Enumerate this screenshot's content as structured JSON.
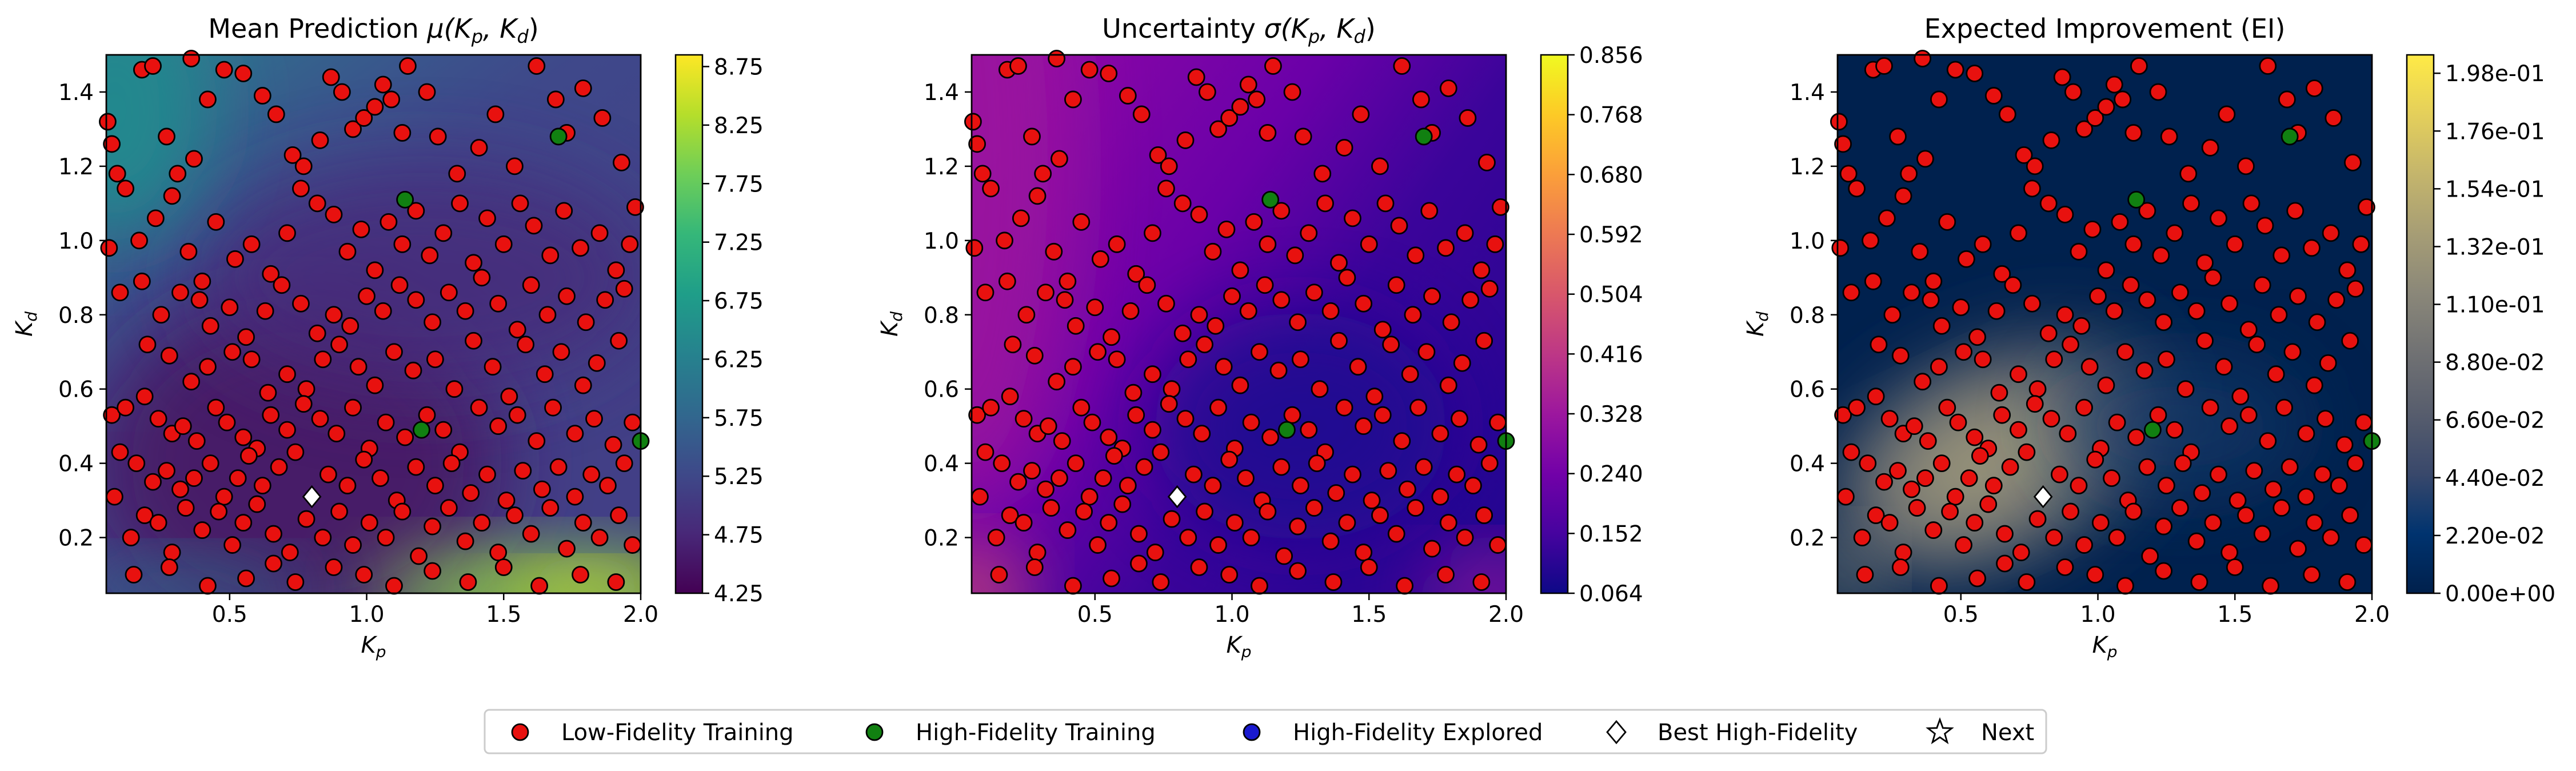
{
  "chart_data": [
    {
      "type": "heatmap",
      "title_main": "Mean Prediction",
      "title_math": "μ(K",
      "title_tail": ", K",
      "title_close": ")",
      "xlabel": "K",
      "xlabel_sub": "p",
      "ylabel": "K",
      "ylabel_sub": "d",
      "xlim": [
        0.05,
        2.0
      ],
      "ylim": [
        0.05,
        1.5
      ],
      "xticks": [
        "0.5",
        "1.0",
        "1.5",
        "2.0"
      ],
      "yticks": [
        "0.2",
        "0.4",
        "0.6",
        "0.8",
        "1.0",
        "1.2",
        "1.4"
      ],
      "colormap": "viridis",
      "colorbar_ticks": [
        "4.25",
        "4.75",
        "5.25",
        "5.75",
        "6.25",
        "6.75",
        "7.25",
        "7.75",
        "8.25",
        "8.75"
      ],
      "colorbar_range": [
        4.25,
        8.85
      ]
    },
    {
      "type": "heatmap",
      "title_main": "Uncertainty",
      "title_math": "σ(K",
      "title_tail": ", K",
      "title_close": ")",
      "xlabel": "K",
      "xlabel_sub": "p",
      "ylabel": "K",
      "ylabel_sub": "d",
      "xlim": [
        0.05,
        2.0
      ],
      "ylim": [
        0.05,
        1.5
      ],
      "xticks": [
        "0.5",
        "1.0",
        "1.5",
        "2.0"
      ],
      "yticks": [
        "0.2",
        "0.4",
        "0.6",
        "0.8",
        "1.0",
        "1.2",
        "1.4"
      ],
      "colormap": "plasma",
      "colorbar_ticks": [
        "0.064",
        "0.152",
        "0.240",
        "0.328",
        "0.416",
        "0.504",
        "0.592",
        "0.680",
        "0.768",
        "0.856"
      ],
      "colorbar_range": [
        0.064,
        0.856
      ]
    },
    {
      "type": "heatmap",
      "title_main": "Expected Improvement (EI)",
      "title_math": "",
      "title_tail": "",
      "title_close": "",
      "xlabel": "K",
      "xlabel_sub": "p",
      "ylabel": "K",
      "ylabel_sub": "d",
      "xlim": [
        0.05,
        2.0
      ],
      "ylim": [
        0.05,
        1.5
      ],
      "xticks": [
        "0.5",
        "1.0",
        "1.5",
        "2.0"
      ],
      "yticks": [
        "0.2",
        "0.4",
        "0.6",
        "0.8",
        "1.0",
        "1.2",
        "1.4"
      ],
      "colormap": "cividis",
      "colorbar_ticks": [
        "0.00e+00",
        "2.20e-02",
        "4.40e-02",
        "6.60e-02",
        "8.80e-02",
        "1.10e-01",
        "1.32e-01",
        "1.54e-01",
        "1.76e-01",
        "1.98e-01"
      ],
      "colorbar_range": [
        0.0,
        0.205
      ]
    }
  ],
  "points": {
    "low_fidelity": [
      [
        0.055,
        1.32
      ],
      [
        0.07,
        1.26
      ],
      [
        0.09,
        1.18
      ],
      [
        0.12,
        1.14
      ],
      [
        0.18,
        1.46
      ],
      [
        0.22,
        1.47
      ],
      [
        0.36,
        1.49
      ],
      [
        0.27,
        1.28
      ],
      [
        0.31,
        1.18
      ],
      [
        0.37,
        1.22
      ],
      [
        0.42,
        1.38
      ],
      [
        0.48,
        1.46
      ],
      [
        0.55,
        1.45
      ],
      [
        0.62,
        1.39
      ],
      [
        0.67,
        1.34
      ],
      [
        0.73,
        1.23
      ],
      [
        0.77,
        1.2
      ],
      [
        0.83,
        1.27
      ],
      [
        0.87,
        1.44
      ],
      [
        0.91,
        1.4
      ],
      [
        0.95,
        1.3
      ],
      [
        0.99,
        1.33
      ],
      [
        1.03,
        1.36
      ],
      [
        1.06,
        1.42
      ],
      [
        1.09,
        1.38
      ],
      [
        1.13,
        1.29
      ],
      [
        1.15,
        1.47
      ],
      [
        1.22,
        1.4
      ],
      [
        1.26,
        1.28
      ],
      [
        1.33,
        1.18
      ],
      [
        1.41,
        1.25
      ],
      [
        1.47,
        1.34
      ],
      [
        1.54,
        1.2
      ],
      [
        1.62,
        1.47
      ],
      [
        1.69,
        1.38
      ],
      [
        1.73,
        1.29
      ],
      [
        1.79,
        1.41
      ],
      [
        1.86,
        1.33
      ],
      [
        1.93,
        1.21
      ],
      [
        1.98,
        1.09
      ],
      [
        0.06,
        0.98
      ],
      [
        0.17,
        1.0
      ],
      [
        0.23,
        1.06
      ],
      [
        0.29,
        1.12
      ],
      [
        0.35,
        0.97
      ],
      [
        0.4,
        0.89
      ],
      [
        0.45,
        1.05
      ],
      [
        0.52,
        0.95
      ],
      [
        0.58,
        0.99
      ],
      [
        0.65,
        0.91
      ],
      [
        0.71,
        1.02
      ],
      [
        0.76,
        1.14
      ],
      [
        0.82,
        1.1
      ],
      [
        0.88,
        1.07
      ],
      [
        0.93,
        0.97
      ],
      [
        0.98,
        1.03
      ],
      [
        1.03,
        0.92
      ],
      [
        1.08,
        1.05
      ],
      [
        1.13,
        0.99
      ],
      [
        1.18,
        1.08
      ],
      [
        1.23,
        0.96
      ],
      [
        1.28,
        1.02
      ],
      [
        1.34,
        1.1
      ],
      [
        1.39,
        0.94
      ],
      [
        1.44,
        1.06
      ],
      [
        1.5,
        0.99
      ],
      [
        1.56,
        1.1
      ],
      [
        1.61,
        1.04
      ],
      [
        1.67,
        0.96
      ],
      [
        1.72,
        1.08
      ],
      [
        1.78,
        0.98
      ],
      [
        1.85,
        1.02
      ],
      [
        1.91,
        0.92
      ],
      [
        1.96,
        0.99
      ],
      [
        0.1,
        0.86
      ],
      [
        0.18,
        0.89
      ],
      [
        0.25,
        0.8
      ],
      [
        0.32,
        0.86
      ],
      [
        0.39,
        0.84
      ],
      [
        0.43,
        0.77
      ],
      [
        0.5,
        0.82
      ],
      [
        0.56,
        0.74
      ],
      [
        0.63,
        0.81
      ],
      [
        0.69,
        0.88
      ],
      [
        0.76,
        0.83
      ],
      [
        0.82,
        0.75
      ],
      [
        0.88,
        0.8
      ],
      [
        0.94,
        0.77
      ],
      [
        1.0,
        0.85
      ],
      [
        1.06,
        0.81
      ],
      [
        1.12,
        0.88
      ],
      [
        1.18,
        0.84
      ],
      [
        1.24,
        0.78
      ],
      [
        1.3,
        0.86
      ],
      [
        1.36,
        0.81
      ],
      [
        1.42,
        0.9
      ],
      [
        1.48,
        0.83
      ],
      [
        1.55,
        0.76
      ],
      [
        1.6,
        0.88
      ],
      [
        1.66,
        0.8
      ],
      [
        1.73,
        0.85
      ],
      [
        1.8,
        0.78
      ],
      [
        1.87,
        0.84
      ],
      [
        1.94,
        0.87
      ],
      [
        0.2,
        0.72
      ],
      [
        0.28,
        0.69
      ],
      [
        0.36,
        0.62
      ],
      [
        0.42,
        0.66
      ],
      [
        0.51,
        0.7
      ],
      [
        0.58,
        0.68
      ],
      [
        0.64,
        0.59
      ],
      [
        0.71,
        0.64
      ],
      [
        0.78,
        0.6
      ],
      [
        0.84,
        0.68
      ],
      [
        0.9,
        0.72
      ],
      [
        0.97,
        0.66
      ],
      [
        1.03,
        0.61
      ],
      [
        1.1,
        0.7
      ],
      [
        1.17,
        0.65
      ],
      [
        1.25,
        0.68
      ],
      [
        1.32,
        0.6
      ],
      [
        1.39,
        0.73
      ],
      [
        1.46,
        0.66
      ],
      [
        1.52,
        0.58
      ],
      [
        1.58,
        0.72
      ],
      [
        1.65,
        0.64
      ],
      [
        1.71,
        0.7
      ],
      [
        1.79,
        0.61
      ],
      [
        1.84,
        0.67
      ],
      [
        1.92,
        0.73
      ],
      [
        0.07,
        0.53
      ],
      [
        0.12,
        0.55
      ],
      [
        0.19,
        0.58
      ],
      [
        0.24,
        0.52
      ],
      [
        0.29,
        0.48
      ],
      [
        0.33,
        0.5
      ],
      [
        0.38,
        0.46
      ],
      [
        0.45,
        0.55
      ],
      [
        0.49,
        0.51
      ],
      [
        0.55,
        0.47
      ],
      [
        0.6,
        0.44
      ],
      [
        0.65,
        0.53
      ],
      [
        0.71,
        0.49
      ],
      [
        0.77,
        0.56
      ],
      [
        0.83,
        0.52
      ],
      [
        0.89,
        0.48
      ],
      [
        0.95,
        0.55
      ],
      [
        1.01,
        0.44
      ],
      [
        1.07,
        0.51
      ],
      [
        1.14,
        0.47
      ],
      [
        1.22,
        0.53
      ],
      [
        1.28,
        0.49
      ],
      [
        1.34,
        0.43
      ],
      [
        1.41,
        0.55
      ],
      [
        1.48,
        0.5
      ],
      [
        1.55,
        0.53
      ],
      [
        1.62,
        0.46
      ],
      [
        1.68,
        0.55
      ],
      [
        1.76,
        0.48
      ],
      [
        1.83,
        0.52
      ],
      [
        1.9,
        0.45
      ],
      [
        1.97,
        0.51
      ],
      [
        0.1,
        0.43
      ],
      [
        0.16,
        0.4
      ],
      [
        0.22,
        0.35
      ],
      [
        0.27,
        0.38
      ],
      [
        0.32,
        0.33
      ],
      [
        0.37,
        0.36
      ],
      [
        0.43,
        0.4
      ],
      [
        0.48,
        0.31
      ],
      [
        0.53,
        0.36
      ],
      [
        0.57,
        0.42
      ],
      [
        0.62,
        0.34
      ],
      [
        0.68,
        0.39
      ],
      [
        0.74,
        0.43
      ],
      [
        0.86,
        0.37
      ],
      [
        0.93,
        0.34
      ],
      [
        0.99,
        0.41
      ],
      [
        1.05,
        0.36
      ],
      [
        1.11,
        0.3
      ],
      [
        1.18,
        0.39
      ],
      [
        1.25,
        0.34
      ],
      [
        1.31,
        0.4
      ],
      [
        1.38,
        0.32
      ],
      [
        1.44,
        0.37
      ],
      [
        1.51,
        0.3
      ],
      [
        1.57,
        0.38
      ],
      [
        1.64,
        0.33
      ],
      [
        1.7,
        0.39
      ],
      [
        1.76,
        0.31
      ],
      [
        1.82,
        0.37
      ],
      [
        1.88,
        0.34
      ],
      [
        1.94,
        0.4
      ],
      [
        0.08,
        0.31
      ],
      [
        0.14,
        0.2
      ],
      [
        0.19,
        0.26
      ],
      [
        0.24,
        0.24
      ],
      [
        0.29,
        0.16
      ],
      [
        0.34,
        0.28
      ],
      [
        0.4,
        0.22
      ],
      [
        0.46,
        0.27
      ],
      [
        0.51,
        0.18
      ],
      [
        0.55,
        0.24
      ],
      [
        0.6,
        0.29
      ],
      [
        0.66,
        0.21
      ],
      [
        0.72,
        0.16
      ],
      [
        0.78,
        0.25
      ],
      [
        0.84,
        0.2
      ],
      [
        0.9,
        0.27
      ],
      [
        0.95,
        0.18
      ],
      [
        1.01,
        0.24
      ],
      [
        1.07,
        0.2
      ],
      [
        1.13,
        0.27
      ],
      [
        1.19,
        0.15
      ],
      [
        1.24,
        0.23
      ],
      [
        1.3,
        0.28
      ],
      [
        1.36,
        0.19
      ],
      [
        1.42,
        0.24
      ],
      [
        1.48,
        0.16
      ],
      [
        1.54,
        0.26
      ],
      [
        1.6,
        0.21
      ],
      [
        1.67,
        0.28
      ],
      [
        1.73,
        0.17
      ],
      [
        1.79,
        0.24
      ],
      [
        1.85,
        0.2
      ],
      [
        1.92,
        0.26
      ],
      [
        1.97,
        0.18
      ],
      [
        0.15,
        0.1
      ],
      [
        0.28,
        0.12
      ],
      [
        0.42,
        0.07
      ],
      [
        0.56,
        0.09
      ],
      [
        0.66,
        0.13
      ],
      [
        0.74,
        0.08
      ],
      [
        0.88,
        0.12
      ],
      [
        0.99,
        0.1
      ],
      [
        1.1,
        0.07
      ],
      [
        1.24,
        0.11
      ],
      [
        1.37,
        0.08
      ],
      [
        1.5,
        0.12
      ],
      [
        1.63,
        0.07
      ],
      [
        1.78,
        0.1
      ],
      [
        1.91,
        0.08
      ]
    ],
    "high_fidelity_training": [
      [
        1.7,
        1.28
      ],
      [
        1.14,
        1.11
      ],
      [
        1.2,
        0.49
      ],
      [
        2.0,
        0.46
      ]
    ],
    "high_fidelity_explored": [],
    "best_high_fidelity": [
      0.8,
      0.31
    ]
  },
  "legend": {
    "items": [
      {
        "label": "Low-Fidelity Training",
        "marker": "circle",
        "color": "#e8110f"
      },
      {
        "label": "High-Fidelity Training",
        "marker": "circle",
        "color": "#118011"
      },
      {
        "label": "High-Fidelity Explored",
        "marker": "circle",
        "color": "#1a1ad0"
      },
      {
        "label": "Best High-Fidelity",
        "marker": "diamond",
        "color": "#ffffff"
      },
      {
        "label": "Next",
        "marker": "star",
        "color": "#ffffff"
      }
    ]
  }
}
